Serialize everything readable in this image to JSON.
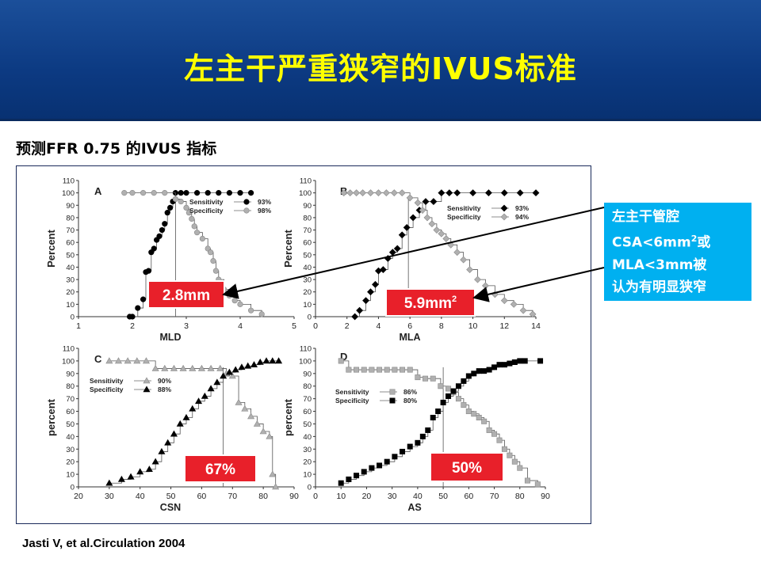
{
  "slide": {
    "title": "左主干严重狭窄的IVUS标准",
    "subtitle": "预测FFR 0.75 的IVUS 指标",
    "citation": "Jasti V, et al.Circulation 2004",
    "callout": {
      "line1": "左主干管腔",
      "line2_pre": "CSA<6mm",
      "line2_sup": "2",
      "line2_post": "或",
      "line3": "MLA<3mm被",
      "line4": "认为有明显狭窄"
    },
    "colors": {
      "header": "#0c3a82",
      "title": "#ffff00",
      "callout": "#00b0f0",
      "highlight_box": "#e8202a"
    }
  },
  "chart_data": [
    {
      "type": "line",
      "panel": "A",
      "xlabel": "MLD",
      "ylabel": "Percent",
      "xlim": [
        1,
        5
      ],
      "ylim": [
        0,
        110
      ],
      "xticks": [
        "1",
        "2",
        "3",
        "4",
        "5"
      ],
      "yticks": [
        "0",
        "10",
        "20",
        "30",
        "40",
        "50",
        "60",
        "70",
        "80",
        "90",
        "100",
        "110"
      ],
      "cutoff": 2.8,
      "cutoff_label": "2.8mm",
      "legend": [
        {
          "label": "Sensitivity",
          "value": "93%"
        },
        {
          "label": "Specificity",
          "value": "98%"
        }
      ],
      "series": [
        {
          "name": "Sensitivity",
          "marker": "circle-black",
          "x": [
            1.95,
            2.0,
            2.1,
            2.2,
            2.25,
            2.3,
            2.35,
            2.4,
            2.45,
            2.5,
            2.55,
            2.6,
            2.65,
            2.7,
            2.75,
            2.8,
            2.9,
            3.0,
            3.2,
            3.4,
            3.6,
            3.8,
            4.0,
            4.2
          ],
          "y": [
            0,
            0,
            7,
            14,
            36,
            37,
            52,
            55,
            62,
            65,
            70,
            75,
            84,
            88,
            93,
            100,
            100,
            100,
            100,
            100,
            100,
            100,
            100,
            100
          ]
        },
        {
          "name": "Specificity",
          "marker": "circle-gray",
          "x": [
            1.85,
            2.0,
            2.2,
            2.4,
            2.6,
            2.8,
            2.9,
            3.0,
            3.05,
            3.1,
            3.15,
            3.2,
            3.3,
            3.4,
            3.45,
            3.5,
            3.55,
            3.6,
            3.7,
            3.8,
            3.9,
            4.0,
            4.2,
            4.4
          ],
          "y": [
            100,
            100,
            100,
            100,
            100,
            95,
            93,
            88,
            84,
            79,
            73,
            68,
            63,
            55,
            52,
            45,
            37,
            30,
            22,
            17,
            13,
            10,
            5,
            2
          ]
        }
      ]
    },
    {
      "type": "line",
      "panel": "B",
      "xlabel": "MLA",
      "ylabel": "Percent",
      "xlim": [
        0,
        14
      ],
      "ylim": [
        0,
        110
      ],
      "xticks": [
        "0",
        "2",
        "4",
        "6",
        "8",
        "10",
        "12",
        "14"
      ],
      "yticks": [
        "0",
        "10",
        "20",
        "30",
        "40",
        "50",
        "60",
        "70",
        "80",
        "90",
        "100",
        "110"
      ],
      "cutoff": 5.9,
      "cutoff_label": "5.9mm",
      "cutoff_label_sup": "2",
      "legend": [
        {
          "label": "Sensitivity",
          "value": "93%"
        },
        {
          "label": "Specificity",
          "value": "94%"
        }
      ],
      "series": [
        {
          "name": "Sensitivity",
          "marker": "diamond-black",
          "x": [
            2.5,
            2.8,
            3.2,
            3.5,
            3.8,
            4.0,
            4.3,
            4.6,
            4.9,
            5.2,
            5.5,
            5.8,
            6.2,
            6.6,
            7.0,
            7.5,
            8.0,
            8.5,
            9.0,
            10,
            11,
            12,
            13,
            14
          ],
          "y": [
            0,
            5,
            13,
            20,
            26,
            37,
            38,
            47,
            52,
            55,
            66,
            72,
            80,
            86,
            93,
            93,
            100,
            100,
            100,
            100,
            100,
            100,
            100,
            100
          ]
        },
        {
          "name": "Specificity",
          "marker": "diamond-gray",
          "x": [
            1.8,
            2.2,
            2.6,
            3.0,
            3.5,
            4.0,
            4.5,
            5.0,
            5.5,
            6.0,
            6.5,
            6.8,
            7.1,
            7.4,
            7.7,
            8.0,
            8.3,
            8.6,
            9.0,
            9.4,
            9.8,
            10.3,
            10.8,
            11.4,
            12.0,
            12.6,
            13.2,
            13.8
          ],
          "y": [
            100,
            100,
            100,
            100,
            100,
            100,
            100,
            100,
            100,
            96,
            92,
            86,
            80,
            75,
            70,
            67,
            63,
            58,
            52,
            46,
            38,
            30,
            25,
            18,
            13,
            10,
            5,
            2
          ]
        }
      ]
    },
    {
      "type": "line",
      "panel": "C",
      "xlabel": "CSN",
      "ylabel": "percent",
      "xlim": [
        20,
        90
      ],
      "ylim": [
        0,
        110
      ],
      "xticks": [
        "20",
        "30",
        "40",
        "50",
        "60",
        "70",
        "80",
        "90"
      ],
      "yticks": [
        "0",
        "10",
        "20",
        "30",
        "40",
        "50",
        "60",
        "70",
        "80",
        "90",
        "100",
        "110"
      ],
      "cutoff": 67,
      "cutoff_label": "67%",
      "legend": [
        {
          "label": "Sensitivity",
          "value": "90%"
        },
        {
          "label": "Specificity",
          "value": "88%"
        }
      ],
      "series": [
        {
          "name": "Sensitivity",
          "marker": "triangle-gray",
          "x": [
            30,
            33,
            36,
            39,
            42,
            45,
            48,
            51,
            54,
            57,
            60,
            63,
            66,
            68,
            70,
            72,
            74,
            76,
            78,
            80,
            82,
            83,
            84
          ],
          "y": [
            100,
            100,
            100,
            100,
            100,
            94,
            94,
            94,
            94,
            94,
            94,
            94,
            94,
            90,
            88,
            67,
            62,
            56,
            50,
            44,
            40,
            10,
            0
          ]
        },
        {
          "name": "Specificity",
          "marker": "triangle-black",
          "x": [
            30,
            34,
            37,
            40,
            43,
            45,
            47,
            49,
            51,
            53,
            55,
            57,
            59,
            61,
            63,
            65,
            67,
            69,
            71,
            73,
            75,
            77,
            79,
            81,
            83,
            85
          ],
          "y": [
            3,
            6,
            8,
            12,
            14,
            20,
            28,
            35,
            42,
            50,
            55,
            62,
            68,
            72,
            78,
            83,
            88,
            91,
            93,
            95,
            96,
            97,
            99,
            100,
            100,
            100
          ]
        }
      ]
    },
    {
      "type": "line",
      "panel": "D",
      "xlabel": "AS",
      "ylabel": "percent",
      "xlim": [
        0,
        90
      ],
      "ylim": [
        0,
        110
      ],
      "xticks": [
        "0",
        "10",
        "20",
        "30",
        "40",
        "50",
        "60",
        "70",
        "80",
        "90"
      ],
      "yticks": [
        "0",
        "10",
        "20",
        "30",
        "40",
        "50",
        "60",
        "70",
        "80",
        "90",
        "100",
        "110"
      ],
      "cutoff": 50,
      "cutoff_label": "50%",
      "legend": [
        {
          "label": "Sensitivity",
          "value": "86%"
        },
        {
          "label": "Specificity",
          "value": "80%"
        }
      ],
      "series": [
        {
          "name": "Sensitivity",
          "marker": "square-gray",
          "x": [
            10,
            13,
            16,
            19,
            22,
            25,
            28,
            31,
            34,
            37,
            40,
            43,
            46,
            49,
            52,
            54,
            56,
            58,
            60,
            62,
            64,
            66,
            68,
            70,
            72,
            74,
            76,
            78,
            80,
            83,
            87
          ],
          "y": [
            100,
            93,
            93,
            93,
            93,
            93,
            93,
            93,
            93,
            93,
            87,
            86,
            86,
            80,
            78,
            75,
            70,
            65,
            60,
            58,
            55,
            52,
            45,
            42,
            37,
            30,
            25,
            20,
            15,
            5,
            2
          ]
        },
        {
          "name": "Specificity",
          "marker": "square-black",
          "x": [
            10,
            13,
            16,
            19,
            22,
            25,
            28,
            31,
            34,
            37,
            40,
            42,
            44,
            46,
            48,
            50,
            52,
            54,
            56,
            58,
            60,
            62,
            64,
            66,
            68,
            70,
            72,
            74,
            76,
            78,
            80,
            82,
            88
          ],
          "y": [
            3,
            6,
            9,
            12,
            15,
            17,
            20,
            24,
            28,
            32,
            35,
            40,
            45,
            55,
            60,
            67,
            72,
            76,
            80,
            84,
            88,
            90,
            92,
            92,
            93,
            95,
            97,
            97,
            98,
            99,
            100,
            100,
            100
          ]
        }
      ]
    }
  ]
}
